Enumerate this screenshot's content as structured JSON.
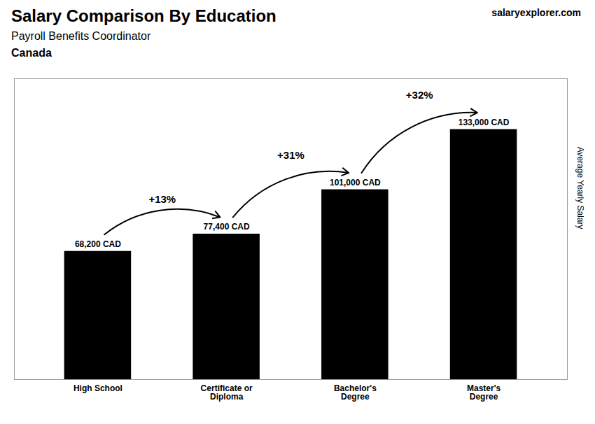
{
  "chart_data": {
    "type": "bar",
    "title": "Salary Comparison By Education",
    "subtitle": "Payroll Benefits Coordinator",
    "ylabel": "Average Yearly Salary",
    "categories": [
      "High School",
      "Certificate or\nDiploma",
      "Bachelor's\nDegree",
      "Master's\nDegree"
    ],
    "values": [
      68200,
      77400,
      101000,
      133000
    ],
    "value_labels": [
      "68,200 CAD",
      "77,400 CAD",
      "101,000 CAD",
      "133,000 CAD"
    ],
    "data_labels": true,
    "ylim": [
      0,
      160000
    ],
    "tick_labels": "x",
    "annotations": [
      {
        "text": "Canada"
      },
      {
        "text": "salaryexplorer.com"
      },
      {
        "text": "+13%",
        "from": "High School",
        "to": "Certificate or\nDiploma"
      },
      {
        "text": "+31%",
        "from": "Certificate or\nDiploma",
        "to": "Bachelor's\nDegree"
      },
      {
        "text": "+32%",
        "from": "Bachelor's\nDegree",
        "to": "Master's\nDegree"
      }
    ]
  }
}
